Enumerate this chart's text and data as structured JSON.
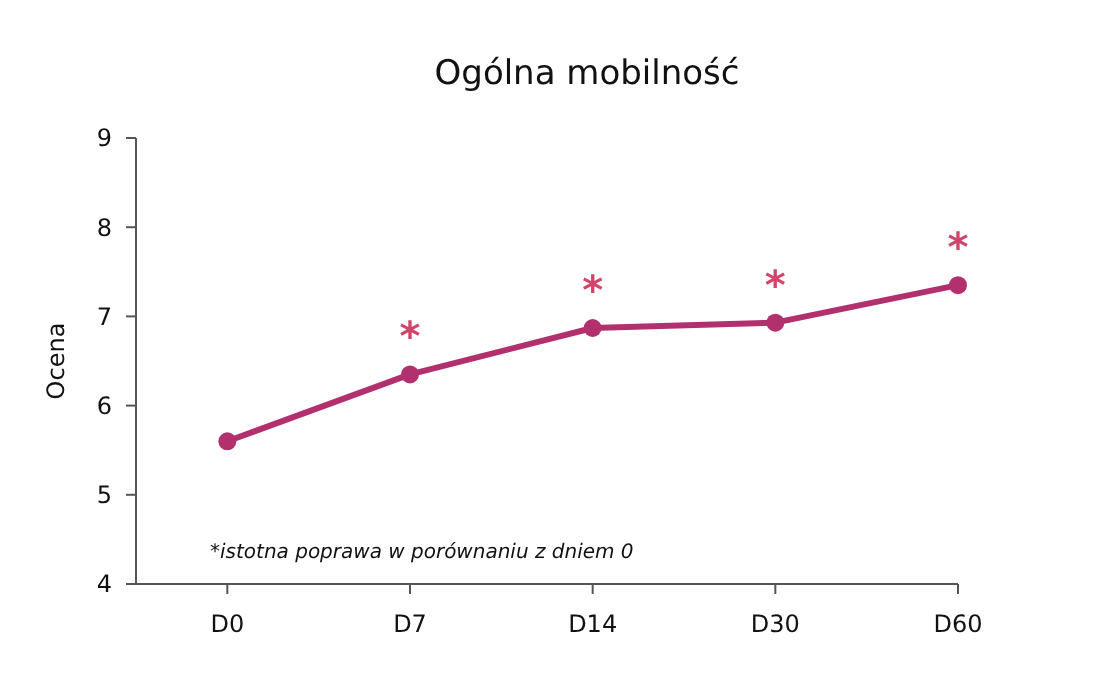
{
  "chart_data": {
    "type": "line",
    "title": "Ogólna mobilność",
    "ylabel": "Ocena",
    "categories": [
      "D0",
      "D7",
      "D14",
      "D30",
      "D60"
    ],
    "series": [
      {
        "color": "#b3306e",
        "values": [
          5.6,
          6.35,
          6.87,
          6.93,
          7.35
        ]
      }
    ],
    "ylim": [
      4,
      9
    ],
    "yticks": [
      4,
      5,
      6,
      7,
      8,
      9
    ],
    "grid": false,
    "marker": "circle",
    "line_style": "solid",
    "annotations": [
      {
        "text": "*",
        "x": "D7",
        "y": 6.35
      },
      {
        "text": "*",
        "x": "D14",
        "y": 6.87
      },
      {
        "text": "*",
        "x": "D30",
        "y": 6.93
      },
      {
        "text": "*",
        "x": "D60",
        "y": 7.35
      },
      "*istotna poprawa w porównaniu z dniem 0"
    ]
  }
}
